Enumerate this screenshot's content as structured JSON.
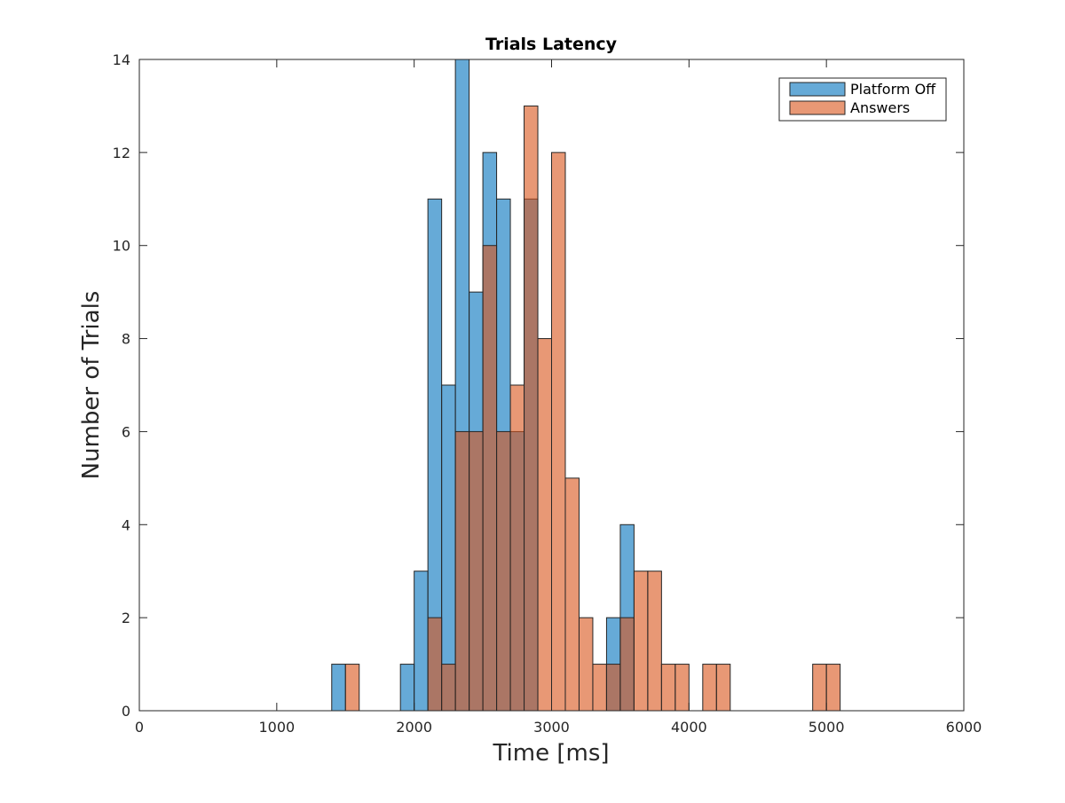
{
  "chart_data": {
    "type": "bar",
    "title": "Trials Latency",
    "xlabel": "Time [ms]",
    "ylabel": "Number of Trials",
    "xlim": [
      0,
      6000
    ],
    "ylim": [
      0,
      14
    ],
    "xticks": [
      0,
      1000,
      2000,
      3000,
      4000,
      5000,
      6000
    ],
    "yticks": [
      0,
      2,
      4,
      6,
      8,
      10,
      12,
      14
    ],
    "grid": false,
    "legend_placement": "top-right",
    "bin_width": 100,
    "series": [
      {
        "name": "Platform Off",
        "color": "#0072BD",
        "bins": [
          {
            "x": 1400,
            "count": 1
          },
          {
            "x": 1900,
            "count": 1
          },
          {
            "x": 2000,
            "count": 3
          },
          {
            "x": 2100,
            "count": 11
          },
          {
            "x": 2200,
            "count": 7
          },
          {
            "x": 2300,
            "count": 14
          },
          {
            "x": 2400,
            "count": 9
          },
          {
            "x": 2500,
            "count": 12
          },
          {
            "x": 2600,
            "count": 11
          },
          {
            "x": 2700,
            "count": 6
          },
          {
            "x": 2800,
            "count": 11
          },
          {
            "x": 3400,
            "count": 2
          },
          {
            "x": 3500,
            "count": 4
          }
        ]
      },
      {
        "name": "Answers",
        "color": "#D95319",
        "bins": [
          {
            "x": 1500,
            "count": 1
          },
          {
            "x": 2100,
            "count": 2
          },
          {
            "x": 2200,
            "count": 1
          },
          {
            "x": 2300,
            "count": 6
          },
          {
            "x": 2400,
            "count": 6
          },
          {
            "x": 2500,
            "count": 10
          },
          {
            "x": 2600,
            "count": 6
          },
          {
            "x": 2700,
            "count": 7
          },
          {
            "x": 2800,
            "count": 13
          },
          {
            "x": 2900,
            "count": 8
          },
          {
            "x": 3000,
            "count": 12
          },
          {
            "x": 3100,
            "count": 5
          },
          {
            "x": 3200,
            "count": 2
          },
          {
            "x": 3300,
            "count": 1
          },
          {
            "x": 3400,
            "count": 1
          },
          {
            "x": 3500,
            "count": 2
          },
          {
            "x": 3600,
            "count": 3
          },
          {
            "x": 3700,
            "count": 3
          },
          {
            "x": 3800,
            "count": 1
          },
          {
            "x": 3900,
            "count": 1
          },
          {
            "x": 4100,
            "count": 1
          },
          {
            "x": 4200,
            "count": 1
          },
          {
            "x": 4900,
            "count": 1
          },
          {
            "x": 5000,
            "count": 1
          }
        ]
      }
    ]
  }
}
